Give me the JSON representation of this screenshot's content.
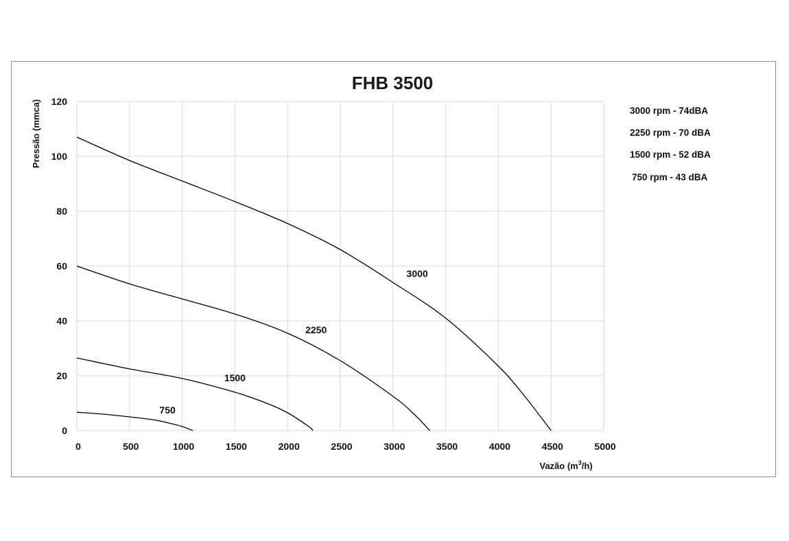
{
  "chart_data": {
    "type": "line",
    "title": "FHB 3500",
    "xlabel": "Vazão (m³/h)",
    "xlabel_parts": {
      "before": "Vazão (m",
      "sup": "3",
      "after": "/h)"
    },
    "ylabel": "Pressão  (mmca)",
    "xlim": [
      0,
      5000
    ],
    "ylim": [
      0,
      120
    ],
    "x_ticks": [
      0,
      500,
      1000,
      1500,
      2000,
      2500,
      3000,
      3500,
      4000,
      4500,
      5000
    ],
    "y_ticks": [
      0,
      20,
      40,
      60,
      80,
      100,
      120
    ],
    "grid": true,
    "legend_position": "right",
    "legend": [
      "3000 rpm - 74dBA",
      "2250 rpm - 70 dBA",
      "1500 rpm - 52 dBA",
      "750 rpm - 43 dBA"
    ],
    "series": [
      {
        "name": "3000",
        "label_at": [
          3230,
          56
        ],
        "x": [
          0,
          500,
          1000,
          1500,
          2000,
          2500,
          3000,
          3500,
          4000,
          4250,
          4500
        ],
        "y": [
          107,
          98.5,
          91,
          83.5,
          75.5,
          66,
          54,
          41,
          23.5,
          12.5,
          0
        ]
      },
      {
        "name": "2250",
        "label_at": [
          2270,
          35.5
        ],
        "x": [
          0,
          500,
          1000,
          1500,
          2000,
          2500,
          3000,
          3200,
          3350
        ],
        "y": [
          60,
          53.5,
          48,
          42.5,
          35.5,
          25.5,
          12.5,
          6,
          0
        ]
      },
      {
        "name": "1500",
        "label_at": [
          1500,
          18
        ],
        "x": [
          0,
          500,
          1000,
          1500,
          1800,
          2000,
          2200,
          2240
        ],
        "y": [
          26.5,
          22.5,
          19,
          14,
          10,
          6.5,
          1.5,
          0
        ]
      },
      {
        "name": "750",
        "label_at": [
          860,
          6.3
        ],
        "x": [
          0,
          250,
          500,
          750,
          900,
          1000,
          1100
        ],
        "y": [
          6.7,
          6,
          5,
          3.8,
          2.5,
          1.5,
          0
        ]
      }
    ]
  }
}
